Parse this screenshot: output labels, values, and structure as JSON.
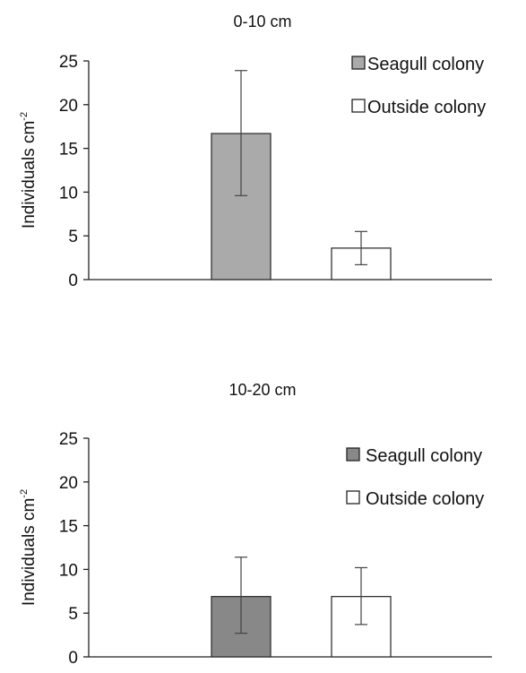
{
  "chart_data": [
    {
      "type": "bar",
      "title": "0-10 cm",
      "ylabel": "Individuals cm",
      "ylabel_superscript": "-2",
      "ylim": [
        0,
        25
      ],
      "yticks": [
        "0",
        "5",
        "10",
        "15",
        "20",
        "25"
      ],
      "grid": false,
      "legend_position": "top-right",
      "series": [
        {
          "name": "Seagull colony",
          "value": 16.7,
          "error_low": 9.6,
          "error_high": 23.9,
          "color": "#aaaaaa",
          "legend_marker": "■"
        },
        {
          "name": "Outside colony",
          "value": 3.6,
          "error_low": 1.7,
          "error_high": 5.5,
          "color": "#ffffff",
          "legend_marker": "□"
        }
      ]
    },
    {
      "type": "bar",
      "title": "10-20 cm",
      "ylabel": "Individuals cm",
      "ylabel_superscript": "-2",
      "ylim": [
        0,
        25
      ],
      "yticks": [
        "0",
        "5",
        "10",
        "15",
        "20",
        "25"
      ],
      "grid": false,
      "legend_position": "top-right",
      "series": [
        {
          "name": "Seagull colony",
          "value": 6.9,
          "error_low": 2.7,
          "error_high": 11.4,
          "color": "#888888",
          "legend_marker": "■"
        },
        {
          "name": "Outside colony",
          "value": 6.9,
          "error_low": 3.7,
          "error_high": 10.2,
          "color": "#ffffff",
          "legend_marker": "□"
        }
      ]
    }
  ]
}
